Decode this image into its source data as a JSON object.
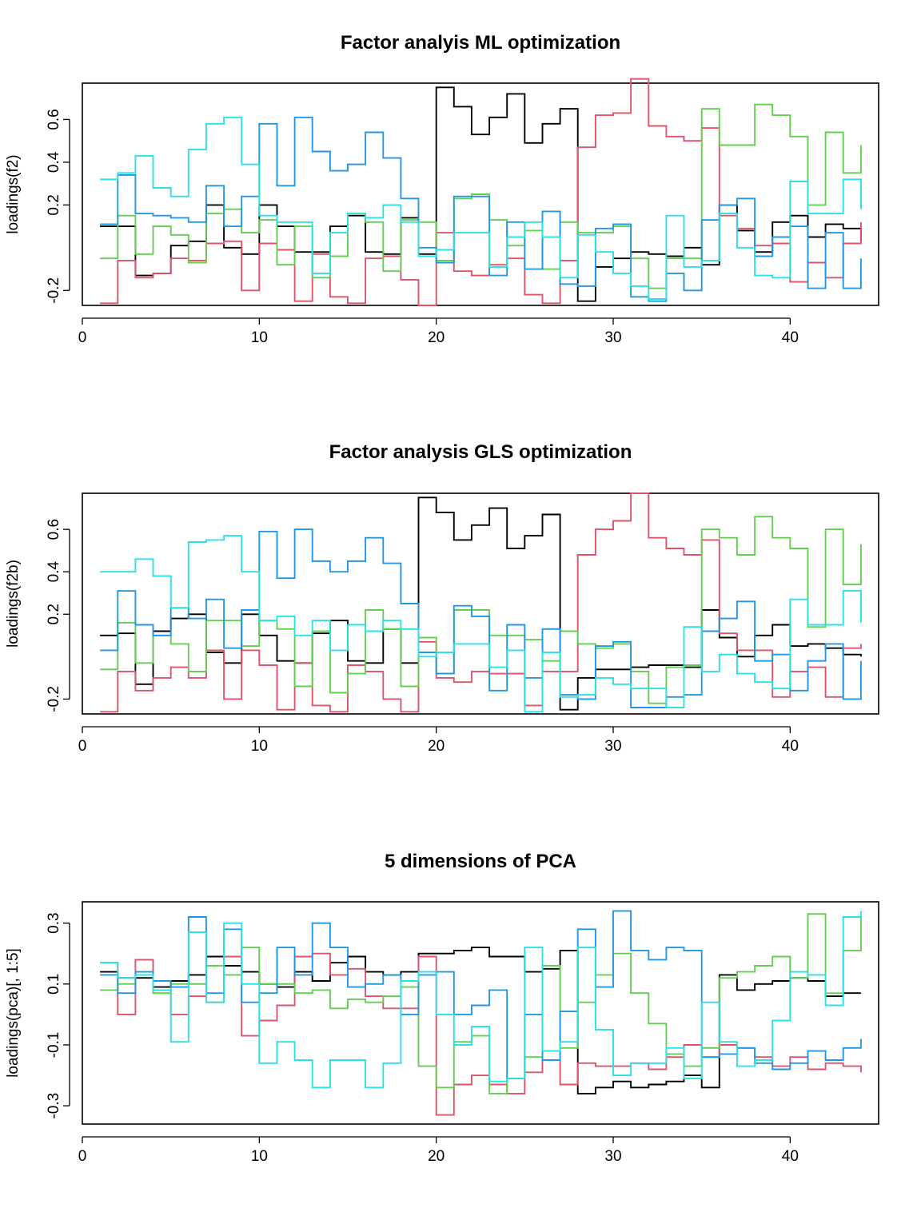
{
  "colors": [
    "#000000",
    "#DF536B",
    "#61D04F",
    "#2297E6",
    "#28E2E5"
  ],
  "charts": [
    {
      "title": "Factor analyis ML optimization",
      "ylabel": "loadings(f2)",
      "xticks": [
        "0",
        "10",
        "20",
        "30",
        "40"
      ],
      "yticks": [
        "-0.2",
        "0.2",
        "0.4",
        "0.6"
      ]
    },
    {
      "title": "Factor analysis GLS optimization",
      "ylabel": "loadings(f2b)",
      "xticks": [
        "0",
        "10",
        "20",
        "30",
        "40"
      ],
      "yticks": [
        "-0.2",
        "0.2",
        "0.4",
        "0.6"
      ]
    },
    {
      "title": "5 dimensions of PCA",
      "ylabel": "loadings(pca)[, 1:5]",
      "xticks": [
        "0",
        "10",
        "20",
        "30",
        "40"
      ],
      "yticks": [
        "-0.3",
        "-0.1",
        "0.1",
        "0.3"
      ]
    }
  ],
  "chart_data": [
    {
      "type": "line",
      "step": true,
      "title": "Factor analyis ML optimization",
      "xlabel": "",
      "ylabel": "loadings(f2)",
      "xlim": [
        0,
        45
      ],
      "ylim": [
        -0.27,
        0.77
      ],
      "x": [
        1,
        2,
        3,
        4,
        5,
        6,
        7,
        8,
        9,
        10,
        11,
        12,
        13,
        14,
        15,
        16,
        17,
        18,
        19,
        20,
        21,
        22,
        23,
        24,
        25,
        26,
        27,
        28,
        29,
        30,
        31,
        32,
        33,
        34,
        35,
        36,
        37,
        38,
        39,
        40,
        41,
        42,
        43,
        44
      ],
      "series": [
        {
          "values": [
            0.1,
            0.1,
            -0.13,
            -0.12,
            0.01,
            0.03,
            0.2,
            0.0,
            -0.03,
            0.2,
            0.1,
            -0.02,
            -0.02,
            0.1,
            0.15,
            -0.02,
            -0.03,
            0.14,
            -0.03,
            0.75,
            0.66,
            0.53,
            0.61,
            0.72,
            0.49,
            0.58,
            0.65,
            -0.25,
            -0.09,
            -0.05,
            -0.02,
            -0.03,
            -0.04,
            0.0,
            -0.08,
            0.2,
            0.08,
            -0.02,
            0.12,
            0.15,
            0.05,
            0.11,
            0.09,
            0.03
          ]
        },
        {
          "values": [
            -0.26,
            -0.06,
            -0.14,
            -0.12,
            -0.05,
            -0.06,
            0.02,
            0.03,
            -0.2,
            0.02,
            -0.01,
            -0.25,
            -0.03,
            -0.23,
            -0.26,
            -0.05,
            -0.04,
            -0.15,
            -0.27,
            0.07,
            -0.11,
            -0.13,
            -0.08,
            -0.05,
            -0.22,
            -0.26,
            -0.06,
            0.47,
            0.62,
            0.63,
            0.79,
            0.57,
            0.52,
            0.5,
            0.56,
            0.15,
            0.09,
            0.01,
            0.02,
            -0.16,
            -0.07,
            -0.14,
            0.02,
            0.12
          ]
        },
        {
          "values": [
            -0.05,
            0.15,
            -0.03,
            0.1,
            0.06,
            -0.07,
            0.16,
            0.18,
            0.07,
            0.13,
            -0.08,
            0.1,
            -0.14,
            -0.04,
            0.16,
            0.12,
            -0.11,
            0.13,
            0.12,
            -0.06,
            0.23,
            0.25,
            0.13,
            0.01,
            0.08,
            -0.1,
            0.12,
            0.07,
            0.07,
            0.1,
            -0.05,
            -0.19,
            -0.05,
            -0.05,
            0.65,
            0.48,
            0.48,
            0.67,
            0.62,
            0.52,
            0.2,
            0.54,
            0.35,
            0.48
          ]
        },
        {
          "values": [
            0.11,
            0.34,
            0.16,
            0.15,
            0.14,
            0.12,
            0.29,
            0.1,
            0.24,
            0.58,
            0.29,
            0.61,
            0.45,
            0.36,
            0.39,
            0.54,
            0.42,
            0.23,
            0.0,
            -0.07,
            0.24,
            0.24,
            -0.13,
            0.12,
            -0.1,
            0.17,
            -0.17,
            -0.18,
            0.09,
            0.11,
            -0.23,
            -0.25,
            -0.12,
            -0.2,
            0.13,
            0.2,
            0.23,
            -0.04,
            0.05,
            0.1,
            -0.19,
            0.07,
            -0.19,
            -0.05
          ]
        },
        {
          "values": [
            0.32,
            0.35,
            0.43,
            0.28,
            0.24,
            0.46,
            0.58,
            0.61,
            0.39,
            0.15,
            0.12,
            0.12,
            -0.12,
            0.07,
            0.16,
            0.14,
            0.2,
            0.12,
            -0.04,
            -0.01,
            0.07,
            0.07,
            -0.09,
            0.05,
            0.12,
            0.05,
            -0.14,
            0.06,
            -0.02,
            -0.12,
            -0.18,
            -0.24,
            0.15,
            -0.09,
            -0.06,
            0.16,
            0.0,
            -0.13,
            -0.14,
            0.31,
            0.16,
            0.16,
            0.32,
            0.18
          ]
        }
      ]
    },
    {
      "type": "line",
      "step": true,
      "title": "Factor analysis GLS optimization",
      "xlabel": "",
      "ylabel": "loadings(f2b)",
      "xlim": [
        0,
        45
      ],
      "ylim": [
        -0.27,
        0.77
      ],
      "x": [
        1,
        2,
        3,
        4,
        5,
        6,
        7,
        8,
        9,
        10,
        11,
        12,
        13,
        14,
        15,
        16,
        17,
        18,
        19,
        20,
        21,
        22,
        23,
        24,
        25,
        26,
        27,
        28,
        29,
        30,
        31,
        32,
        33,
        34,
        35,
        36,
        37,
        38,
        39,
        40,
        41,
        42,
        43,
        44
      ],
      "series": [
        {
          "values": [
            0.1,
            0.11,
            -0.13,
            0.12,
            0.18,
            0.2,
            0.02,
            -0.03,
            0.2,
            0.1,
            -0.02,
            -0.03,
            0.11,
            0.17,
            -0.02,
            -0.03,
            0.13,
            -0.03,
            0.75,
            0.68,
            0.55,
            0.62,
            0.7,
            0.51,
            0.57,
            0.67,
            -0.25,
            -0.1,
            -0.06,
            -0.06,
            -0.05,
            -0.04,
            -0.04,
            -0.05,
            0.22,
            0.09,
            0.0,
            0.1,
            0.15,
            0.05,
            0.06,
            0.04,
            0.01,
            0.0
          ]
        },
        {
          "values": [
            -0.26,
            -0.07,
            -0.16,
            -0.1,
            -0.05,
            -0.1,
            0.03,
            -0.2,
            0.03,
            -0.04,
            -0.25,
            -0.03,
            -0.23,
            -0.26,
            -0.04,
            -0.07,
            -0.2,
            -0.26,
            0.07,
            -0.1,
            -0.12,
            -0.07,
            -0.08,
            -0.08,
            -0.23,
            -0.07,
            -0.07,
            0.48,
            0.6,
            0.64,
            0.77,
            0.56,
            0.51,
            0.48,
            0.55,
            0.11,
            0.03,
            0.03,
            -0.19,
            -0.07,
            -0.05,
            -0.19,
            0.04,
            0.06
          ]
        },
        {
          "values": [
            -0.06,
            0.16,
            -0.03,
            0.1,
            0.06,
            -0.07,
            0.17,
            0.17,
            0.05,
            0.17,
            0.13,
            -0.14,
            0.12,
            -0.17,
            -0.08,
            0.22,
            0.13,
            -0.14,
            0.09,
            -0.08,
            0.22,
            0.22,
            0.1,
            0.1,
            0.08,
            -0.02,
            0.12,
            0.06,
            0.04,
            0.06,
            -0.07,
            -0.22,
            -0.05,
            -0.04,
            0.6,
            0.56,
            0.48,
            0.66,
            0.56,
            0.51,
            0.14,
            0.6,
            0.34,
            0.53
          ]
        },
        {
          "values": [
            0.03,
            0.31,
            0.15,
            0.1,
            0.23,
            0.18,
            0.27,
            0.04,
            0.22,
            0.59,
            0.37,
            0.6,
            0.45,
            0.4,
            0.45,
            0.56,
            0.44,
            0.25,
            0.02,
            -0.08,
            0.24,
            0.19,
            -0.16,
            0.15,
            -0.1,
            0.13,
            -0.18,
            -0.2,
            0.05,
            0.07,
            -0.24,
            -0.24,
            -0.19,
            -0.18,
            0.12,
            0.18,
            0.26,
            -0.02,
            0.01,
            -0.16,
            -0.02,
            0.06,
            -0.2,
            -0.02
          ]
        },
        {
          "values": [
            0.4,
            0.4,
            0.46,
            0.38,
            0.23,
            0.54,
            0.55,
            0.57,
            0.4,
            0.17,
            0.19,
            0.1,
            0.17,
            0.03,
            0.15,
            0.12,
            0.17,
            0.13,
            0.0,
            0.02,
            0.06,
            0.06,
            -0.05,
            0.03,
            -0.26,
            0.02,
            -0.19,
            -0.18,
            -0.1,
            -0.13,
            -0.15,
            -0.15,
            -0.24,
            0.14,
            -0.07,
            0.01,
            -0.08,
            -0.12,
            -0.15,
            0.27,
            0.15,
            0.15,
            0.31,
            0.16
          ]
        }
      ]
    },
    {
      "type": "line",
      "step": true,
      "title": "5 dimensions of PCA",
      "xlabel": "",
      "ylabel": "loadings(pca)[, 1:5]",
      "xlim": [
        0,
        45
      ],
      "ylim": [
        -0.36,
        0.37
      ],
      "x": [
        1,
        2,
        3,
        4,
        5,
        6,
        7,
        8,
        9,
        10,
        11,
        12,
        13,
        14,
        15,
        16,
        17,
        18,
        19,
        20,
        21,
        22,
        23,
        24,
        25,
        26,
        27,
        28,
        29,
        30,
        31,
        32,
        33,
        34,
        35,
        36,
        37,
        38,
        39,
        40,
        41,
        42,
        43,
        44
      ],
      "series": [
        {
          "values": [
            0.14,
            0.12,
            0.12,
            0.09,
            0.11,
            0.13,
            0.19,
            0.16,
            0.14,
            0.1,
            0.09,
            0.14,
            0.11,
            0.17,
            0.19,
            0.14,
            0.13,
            0.14,
            0.2,
            0.2,
            0.21,
            0.22,
            0.19,
            0.19,
            0.14,
            0.15,
            0.21,
            -0.26,
            -0.24,
            -0.22,
            -0.24,
            -0.23,
            -0.22,
            -0.2,
            -0.24,
            0.13,
            0.08,
            0.1,
            0.11,
            0.12,
            0.11,
            0.06,
            0.07,
            0.07
          ]
        },
        {
          "values": [
            0.17,
            0.0,
            0.18,
            0.08,
            0.0,
            0.06,
            0.04,
            0.19,
            -0.07,
            -0.02,
            0.03,
            0.19,
            0.2,
            0.13,
            0.15,
            0.06,
            0.02,
            0.02,
            0.19,
            -0.33,
            -0.23,
            -0.2,
            -0.23,
            -0.26,
            -0.19,
            -0.15,
            -0.23,
            -0.16,
            -0.17,
            -0.17,
            -0.16,
            -0.18,
            -0.14,
            -0.1,
            -0.14,
            -0.1,
            -0.11,
            -0.14,
            -0.17,
            -0.14,
            -0.18,
            -0.16,
            -0.17,
            -0.19
          ]
        },
        {
          "values": [
            0.08,
            0.1,
            0.13,
            0.07,
            0.1,
            0.1,
            0.16,
            0.13,
            0.22,
            0.1,
            0.1,
            0.07,
            0.08,
            0.02,
            0.05,
            0.04,
            0.06,
            0.09,
            -0.17,
            -0.24,
            -0.09,
            -0.07,
            -0.26,
            -0.21,
            -0.14,
            0.16,
            -0.11,
            0.04,
            0.13,
            0.2,
            0.07,
            -0.03,
            -0.13,
            -0.17,
            -0.11,
            0.12,
            0.14,
            0.16,
            0.19,
            0.12,
            0.33,
            0.07,
            0.21,
            0.32
          ]
        },
        {
          "values": [
            0.13,
            0.07,
            0.14,
            0.11,
            0.09,
            0.32,
            0.07,
            0.28,
            0.04,
            0.07,
            0.22,
            0.13,
            0.3,
            0.22,
            0.09,
            0.1,
            0.13,
            0.0,
            0.13,
            0.14,
            0.0,
            0.03,
            0.08,
            -0.21,
            0.0,
            -0.15,
            0.01,
            0.28,
            0.09,
            0.34,
            0.21,
            0.18,
            0.22,
            0.21,
            -0.14,
            -0.13,
            -0.11,
            -0.16,
            -0.18,
            -0.16,
            -0.12,
            -0.15,
            -0.11,
            -0.08
          ]
        },
        {
          "values": [
            0.17,
            0.12,
            0.13,
            0.08,
            -0.09,
            0.27,
            0.04,
            0.3,
            0.1,
            -0.16,
            -0.09,
            -0.15,
            -0.24,
            -0.15,
            -0.15,
            -0.24,
            -0.16,
            0.11,
            0.14,
            0.0,
            -0.1,
            -0.04,
            -0.22,
            -0.21,
            0.22,
            -0.12,
            -0.09,
            0.22,
            -0.05,
            -0.2,
            -0.16,
            -0.16,
            -0.11,
            -0.21,
            0.04,
            -0.09,
            -0.17,
            -0.15,
            -0.02,
            0.14,
            0.13,
            0.03,
            0.32,
            0.34
          ]
        }
      ]
    }
  ]
}
